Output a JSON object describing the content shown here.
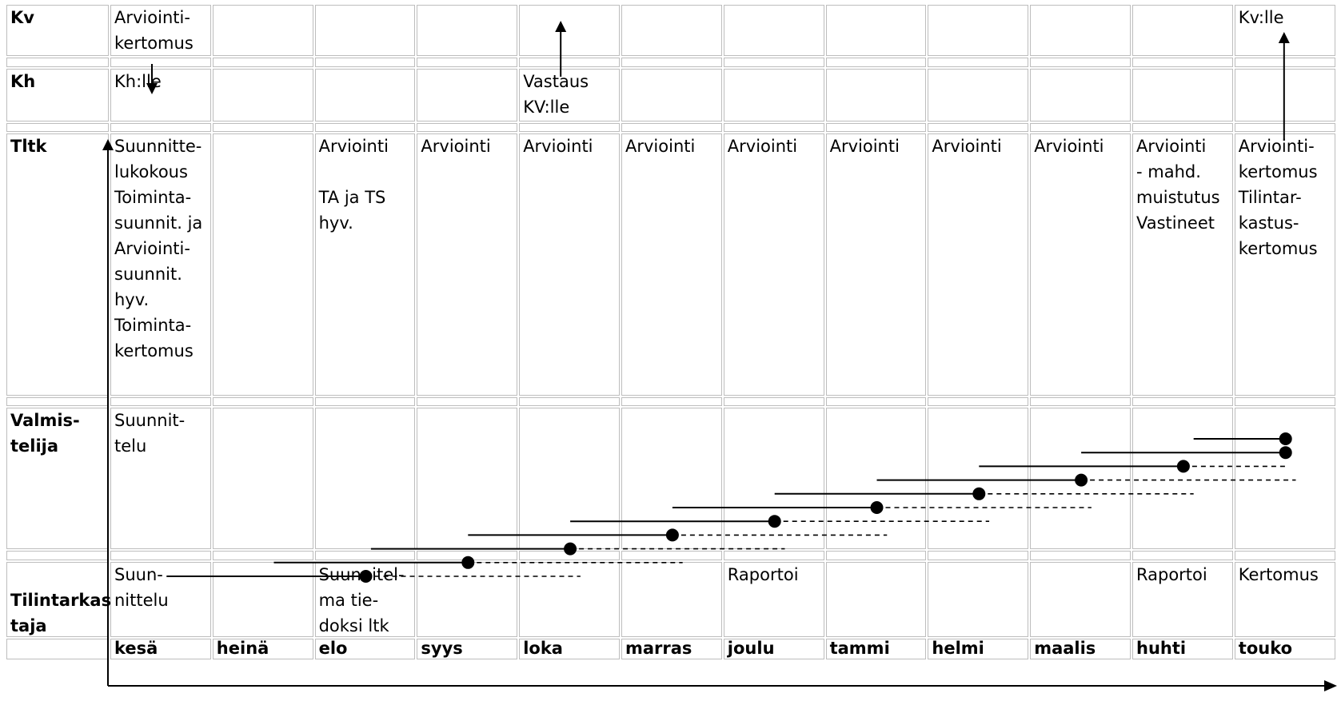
{
  "rows": [
    {
      "key": "kv",
      "label": [
        "Kv"
      ]
    },
    {
      "key": "kh",
      "label": [
        "Kh"
      ]
    },
    {
      "key": "tltk",
      "label": [
        "Tltk"
      ]
    },
    {
      "key": "valmistelija",
      "label": [
        "Valmis-",
        "telija"
      ]
    },
    {
      "key": "tilintarkastaja",
      "label": [
        "",
        "Tilintarkas-",
        "taja"
      ]
    }
  ],
  "months": [
    "kesä",
    "heinä",
    "elo",
    "syys",
    "loka",
    "marras",
    "joulu",
    "tammi",
    "helmi",
    "maalis",
    "huhti",
    "touko"
  ],
  "cells": {
    "kv": [
      [
        "Arviointi-",
        "kertomus"
      ],
      [],
      [],
      [],
      [],
      [],
      [],
      [],
      [],
      [],
      [],
      [
        "Kv:lle"
      ]
    ],
    "kh": [
      [
        "Kh:lle"
      ],
      [],
      [],
      [],
      [
        "Vastaus",
        " KV:lle"
      ],
      [],
      [],
      [],
      [],
      [],
      [],
      []
    ],
    "tltk": [
      [
        "Suunnitte-",
        "lukokous",
        "Toiminta-",
        "suunnit. ja",
        "Arviointi-",
        "suunnit.",
        "hyv.",
        "Toiminta-",
        "kertomus"
      ],
      [],
      [
        "Arviointi",
        "",
        "TA ja TS",
        "hyv."
      ],
      [
        "Arviointi"
      ],
      [
        "Arviointi"
      ],
      [
        "Arviointi"
      ],
      [
        "Arviointi"
      ],
      [
        "Arviointi"
      ],
      [
        "Arviointi"
      ],
      [
        "Arviointi"
      ],
      [
        "Arviointi",
        "- mahd.",
        "muistutus",
        "Vastineet"
      ],
      [
        "Arviointi-",
        "kertomus",
        "Tilintar-",
        "kastus-",
        "kertomus"
      ]
    ],
    "valmistelija": [
      [
        "Suunnit-",
        "telu"
      ],
      [],
      [],
      [],
      [],
      [],
      [],
      [],
      [],
      [],
      [],
      []
    ],
    "tilintarkastaja": [
      [
        "Suun-",
        "nittelu"
      ],
      [],
      [
        "Suunnitel-",
        "ma tie-",
        "doksi ltk"
      ],
      [],
      [],
      [],
      [
        "Raportoi"
      ],
      [],
      [],
      [],
      [
        "Raportoi"
      ],
      [
        "Kertomus"
      ]
    ]
  },
  "timeline_marks": [
    {
      "start_month": 0.55,
      "dot_month": 2.5,
      "dash_end_month": 4.6
    },
    {
      "start_month": 1.6,
      "dot_month": 3.5,
      "dash_end_month": 5.6
    },
    {
      "start_month": 2.55,
      "dot_month": 4.5,
      "dash_end_month": 6.6
    },
    {
      "start_month": 3.5,
      "dot_month": 5.5,
      "dash_end_month": 7.6
    },
    {
      "start_month": 4.5,
      "dot_month": 6.5,
      "dash_end_month": 8.6
    },
    {
      "start_month": 5.5,
      "dot_month": 7.5,
      "dash_end_month": 9.6
    },
    {
      "start_month": 6.5,
      "dot_month": 8.5,
      "dash_end_month": 10.6
    },
    {
      "start_month": 7.5,
      "dot_month": 9.5,
      "dash_end_month": 11.6
    },
    {
      "start_month": 8.5,
      "dot_month": 10.5,
      "dash_end_month": 11.5
    },
    {
      "start_month": 9.5,
      "dot_month": 11.5,
      "dash_end_month": 11.5
    },
    {
      "start_month": 10.6,
      "dot_month": 11.5,
      "dash_end_month": 11.5
    }
  ]
}
